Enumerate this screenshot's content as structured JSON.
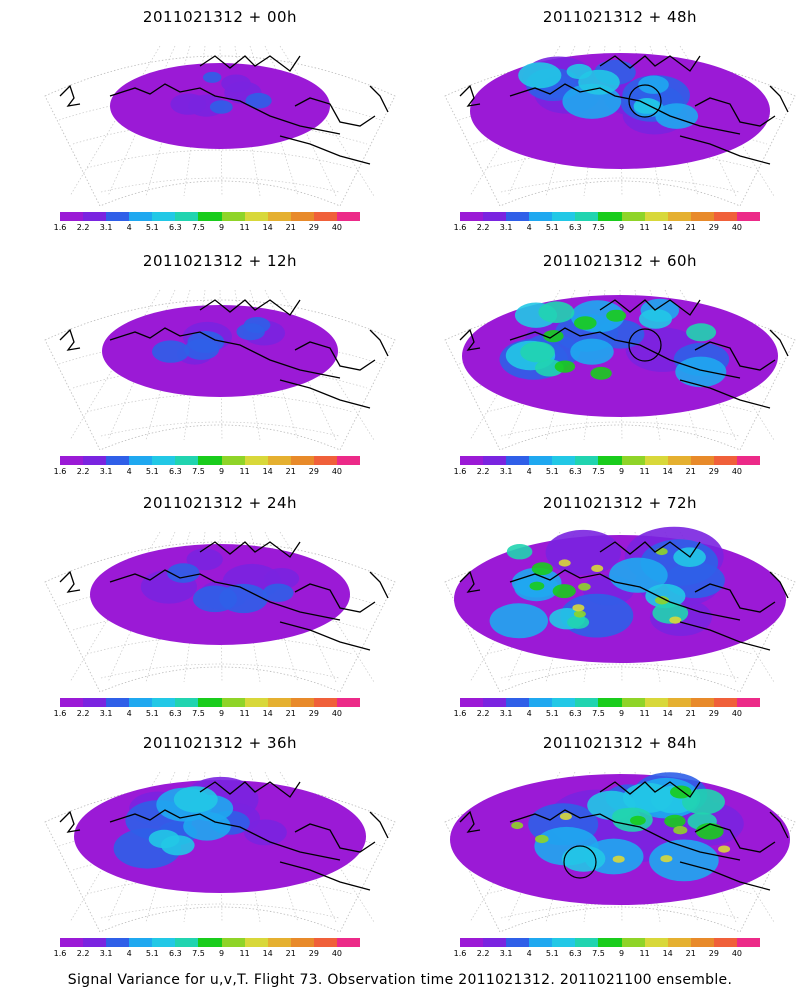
{
  "panels": [
    {
      "title": "2011021312 + 00h",
      "extent": 0.5,
      "intensity": 0,
      "seed": 1,
      "circle": false
    },
    {
      "title": "2011021312 + 48h",
      "extent": 1.0,
      "intensity": 1,
      "seed": 2,
      "circle": true
    },
    {
      "title": "2011021312 + 12h",
      "extent": 0.6,
      "intensity": 0,
      "seed": 3,
      "circle": false
    },
    {
      "title": "2011021312 + 60h",
      "extent": 1.1,
      "intensity": 2,
      "seed": 4,
      "circle": true
    },
    {
      "title": "2011021312 + 24h",
      "extent": 0.75,
      "intensity": 0,
      "seed": 5,
      "circle": false
    },
    {
      "title": "2011021312 + 72h",
      "extent": 1.2,
      "intensity": 3,
      "seed": 6,
      "circle": false
    },
    {
      "title": "2011021312 + 36h",
      "extent": 0.95,
      "intensity": 1,
      "seed": 7,
      "circle": false
    },
    {
      "title": "2011021312 + 84h",
      "extent": 1.25,
      "intensity": 3,
      "seed": 8,
      "circle": true
    }
  ],
  "colorbar": {
    "colors": [
      "#9b1ad6",
      "#7a24e0",
      "#2f5fe8",
      "#1fa8f0",
      "#22c8e6",
      "#21d4b0",
      "#19cc1c",
      "#8fd428",
      "#d8d83a",
      "#e5b030",
      "#e88a2a",
      "#f0603a",
      "#ec2a88"
    ],
    "labels": [
      "1.6",
      "2.2",
      "3.1",
      "4",
      "5.1",
      "6.3",
      "7.5",
      "9",
      "11",
      "14",
      "21",
      "29",
      "40"
    ]
  },
  "footer": {
    "caption": "Signal Variance for u,v,T. Flight 73. Observation time 2011021312. 2011021100 ensemble."
  }
}
